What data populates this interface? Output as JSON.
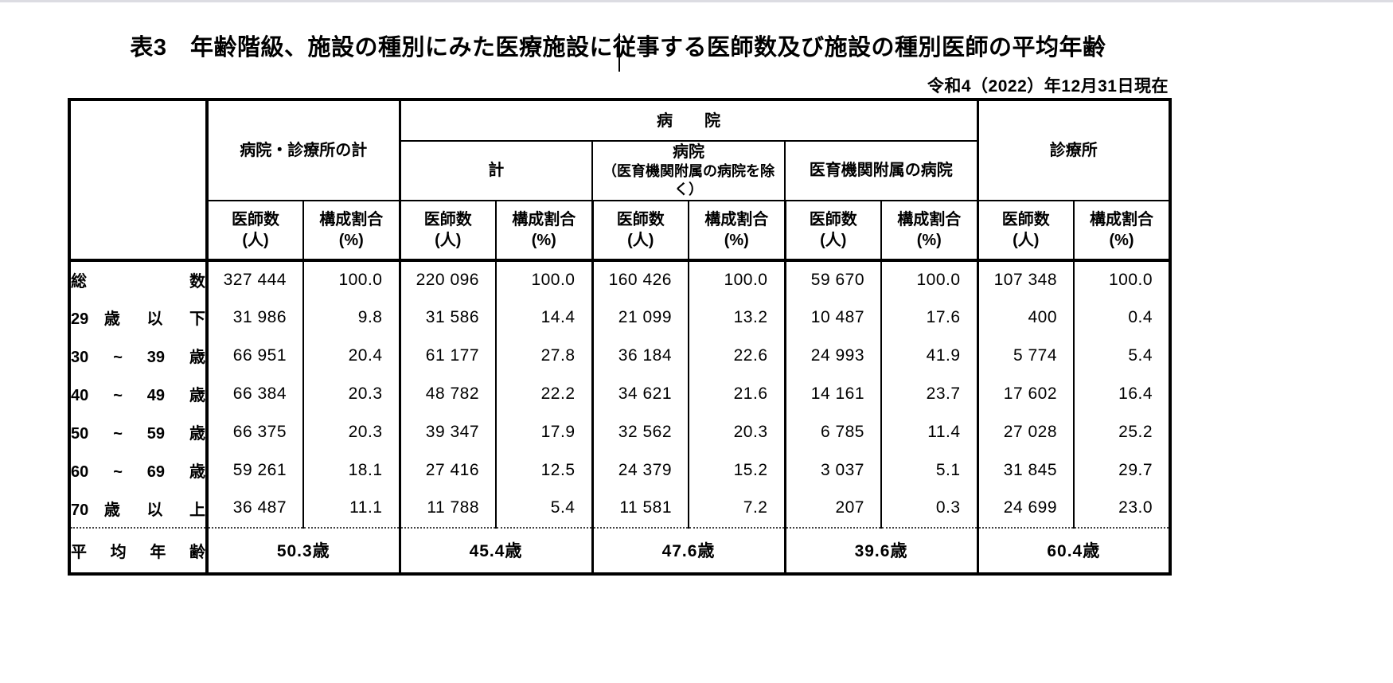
{
  "page": {
    "title": "表3　年齢階級、施設の種別にみた医療施設に従事する医師数及び施設の種別医師の平均年齢",
    "as_of": "令和4（2022）年12月31日現在"
  },
  "table": {
    "groups": {
      "hospital_clinic_total": "病院・診療所の計",
      "hospital": "病　　院",
      "clinic": "診療所",
      "hospital_sub": [
        {
          "line1": "計",
          "line2": ""
        },
        {
          "line1": "病院",
          "line2": "（医育機関附属の病院を除く）"
        },
        {
          "line1": "医育機関附属の病院",
          "line2": ""
        }
      ]
    },
    "unit_headers": {
      "doctors_line1": "医師数",
      "doctors_line2": "(人)",
      "share_line1": "構成割合",
      "share_line2": "(%)"
    },
    "rows": [
      {
        "label": "総 数",
        "values": [
          "327 444",
          "100.0",
          "220 096",
          "100.0",
          "160 426",
          "100.0",
          "59 670",
          "100.0",
          "107 348",
          "100.0"
        ]
      },
      {
        "label": "29 歳 以 下",
        "values": [
          "31 986",
          "9.8",
          "31 586",
          "14.4",
          "21 099",
          "13.2",
          "10 487",
          "17.6",
          "400",
          "0.4"
        ]
      },
      {
        "label": "30 ~ 39 歳",
        "values": [
          "66 951",
          "20.4",
          "61 177",
          "27.8",
          "36 184",
          "22.6",
          "24 993",
          "41.9",
          "5 774",
          "5.4"
        ]
      },
      {
        "label": "40 ~ 49 歳",
        "values": [
          "66 384",
          "20.3",
          "48 782",
          "22.2",
          "34 621",
          "21.6",
          "14 161",
          "23.7",
          "17 602",
          "16.4"
        ]
      },
      {
        "label": "50 ~ 59 歳",
        "values": [
          "66 375",
          "20.3",
          "39 347",
          "17.9",
          "32 562",
          "20.3",
          "6 785",
          "11.4",
          "27 028",
          "25.2"
        ]
      },
      {
        "label": "60 ~ 69 歳",
        "values": [
          "59 261",
          "18.1",
          "27 416",
          "12.5",
          "24 379",
          "15.2",
          "3 037",
          "5.1",
          "31 845",
          "29.7"
        ]
      },
      {
        "label": "70 歳 以 上",
        "values": [
          "36 487",
          "11.1",
          "11 788",
          "5.4",
          "11 581",
          "7.2",
          "207",
          "0.3",
          "24 699",
          "23.0"
        ]
      }
    ],
    "average_row": {
      "label": "平 均 年 齢",
      "values": [
        "50.3歳",
        "45.4歳",
        "47.6歳",
        "39.6歳",
        "60.4歳"
      ]
    }
  }
}
